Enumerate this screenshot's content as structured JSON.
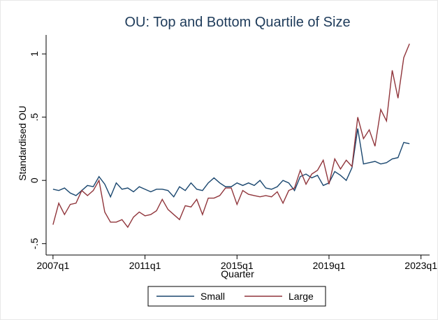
{
  "chart_data": {
    "type": "line",
    "title": "OU: Top and Bottom Quartile of Size",
    "x_label": "Quarter",
    "y_label": "Standardised OU",
    "x": [
      188,
      189,
      190,
      191,
      192,
      193,
      194,
      195,
      196,
      197,
      198,
      199,
      200,
      201,
      202,
      203,
      204,
      205,
      206,
      207,
      208,
      209,
      210,
      211,
      212,
      213,
      214,
      215,
      216,
      217,
      218,
      219,
      220,
      221,
      222,
      223,
      224,
      225,
      226,
      227,
      228,
      229,
      230,
      231,
      232,
      233,
      234,
      235,
      236,
      237,
      238,
      239,
      240,
      241,
      242,
      243,
      244,
      245,
      246,
      247,
      248,
      249,
      250
    ],
    "series": [
      {
        "name": "Small",
        "color": "#1a476f",
        "values": [
          -0.07,
          -0.08,
          -0.06,
          -0.1,
          -0.12,
          -0.08,
          -0.04,
          -0.05,
          0.03,
          -0.03,
          -0.13,
          -0.02,
          -0.07,
          -0.06,
          -0.09,
          -0.05,
          -0.07,
          -0.09,
          -0.07,
          -0.07,
          -0.08,
          -0.13,
          -0.05,
          -0.08,
          -0.02,
          -0.07,
          -0.08,
          -0.02,
          0.02,
          -0.02,
          -0.05,
          -0.05,
          -0.02,
          -0.04,
          -0.02,
          -0.04,
          0.0,
          -0.06,
          -0.07,
          -0.05,
          0.0,
          -0.02,
          -0.08,
          0.03,
          0.05,
          0.02,
          0.04,
          -0.04,
          -0.02,
          0.07,
          0.04,
          0.0,
          0.1,
          0.41,
          0.13,
          0.14,
          0.15,
          0.13,
          0.14,
          0.17,
          0.18,
          0.3,
          0.29
        ]
      },
      {
        "name": "Large",
        "color": "#90353b",
        "values": [
          -0.35,
          -0.18,
          -0.27,
          -0.19,
          -0.18,
          -0.08,
          -0.12,
          -0.08,
          0.0,
          -0.25,
          -0.33,
          -0.33,
          -0.31,
          -0.37,
          -0.29,
          -0.25,
          -0.28,
          -0.27,
          -0.24,
          -0.15,
          -0.23,
          -0.27,
          -0.31,
          -0.2,
          -0.21,
          -0.15,
          -0.27,
          -0.14,
          -0.14,
          -0.12,
          -0.06,
          -0.06,
          -0.19,
          -0.08,
          -0.11,
          -0.12,
          -0.13,
          -0.12,
          -0.13,
          -0.09,
          -0.18,
          -0.08,
          -0.06,
          0.08,
          -0.03,
          0.05,
          0.08,
          0.16,
          -0.03,
          0.17,
          0.09,
          0.16,
          0.11,
          0.5,
          0.33,
          0.4,
          0.27,
          0.56,
          0.47,
          0.87,
          0.65,
          0.97,
          1.08
        ]
      }
    ],
    "xlim": [
      186.8,
      253.5
    ],
    "xticks": [
      {
        "value": 188,
        "label": "2007q1"
      },
      {
        "value": 204,
        "label": "2011q1"
      },
      {
        "value": 220,
        "label": "2015q1"
      },
      {
        "value": 236,
        "label": "2019q1"
      },
      {
        "value": 252,
        "label": "2023q1"
      }
    ],
    "ylim": [
      -0.59,
      1.15
    ],
    "yticks": [
      {
        "value": -0.5,
        "label": "-.5"
      },
      0,
      {
        "value": 0.5,
        "label": ".5"
      },
      1
    ],
    "legend": "bottom"
  }
}
